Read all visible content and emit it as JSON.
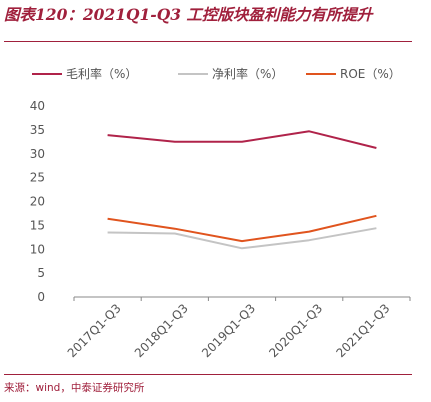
{
  "header": {
    "title": "图表120：2021Q1-Q3 工控版块盈利能力有所提升"
  },
  "footer": {
    "source": "来源：wind，中泰证券研究所"
  },
  "chart_data": {
    "type": "line",
    "title": "图表120：2021Q1-Q3 工控版块盈利能力有所提升",
    "xlabel": "",
    "ylabel": "",
    "categories": [
      "2017Q1-Q3",
      "2018Q1-Q3",
      "2019Q1-Q3",
      "2020Q1-Q3",
      "2021Q1-Q3"
    ],
    "ylim": [
      0,
      40
    ],
    "yticks": [
      0,
      5,
      10,
      15,
      20,
      25,
      30,
      35,
      40
    ],
    "grid": false,
    "legend_position": "top",
    "series": [
      {
        "name": "毛利率（%）",
        "color": "#b0234a",
        "values": [
          33.9,
          32.5,
          32.5,
          34.7,
          31.2
        ]
      },
      {
        "name": "净利率（%）",
        "color": "#c4c4c4",
        "values": [
          13.5,
          13.3,
          10.2,
          11.9,
          14.4
        ]
      },
      {
        "name": "ROE（%）",
        "color": "#e0541e",
        "values": [
          16.4,
          14.3,
          11.7,
          13.7,
          17.0
        ]
      }
    ]
  }
}
